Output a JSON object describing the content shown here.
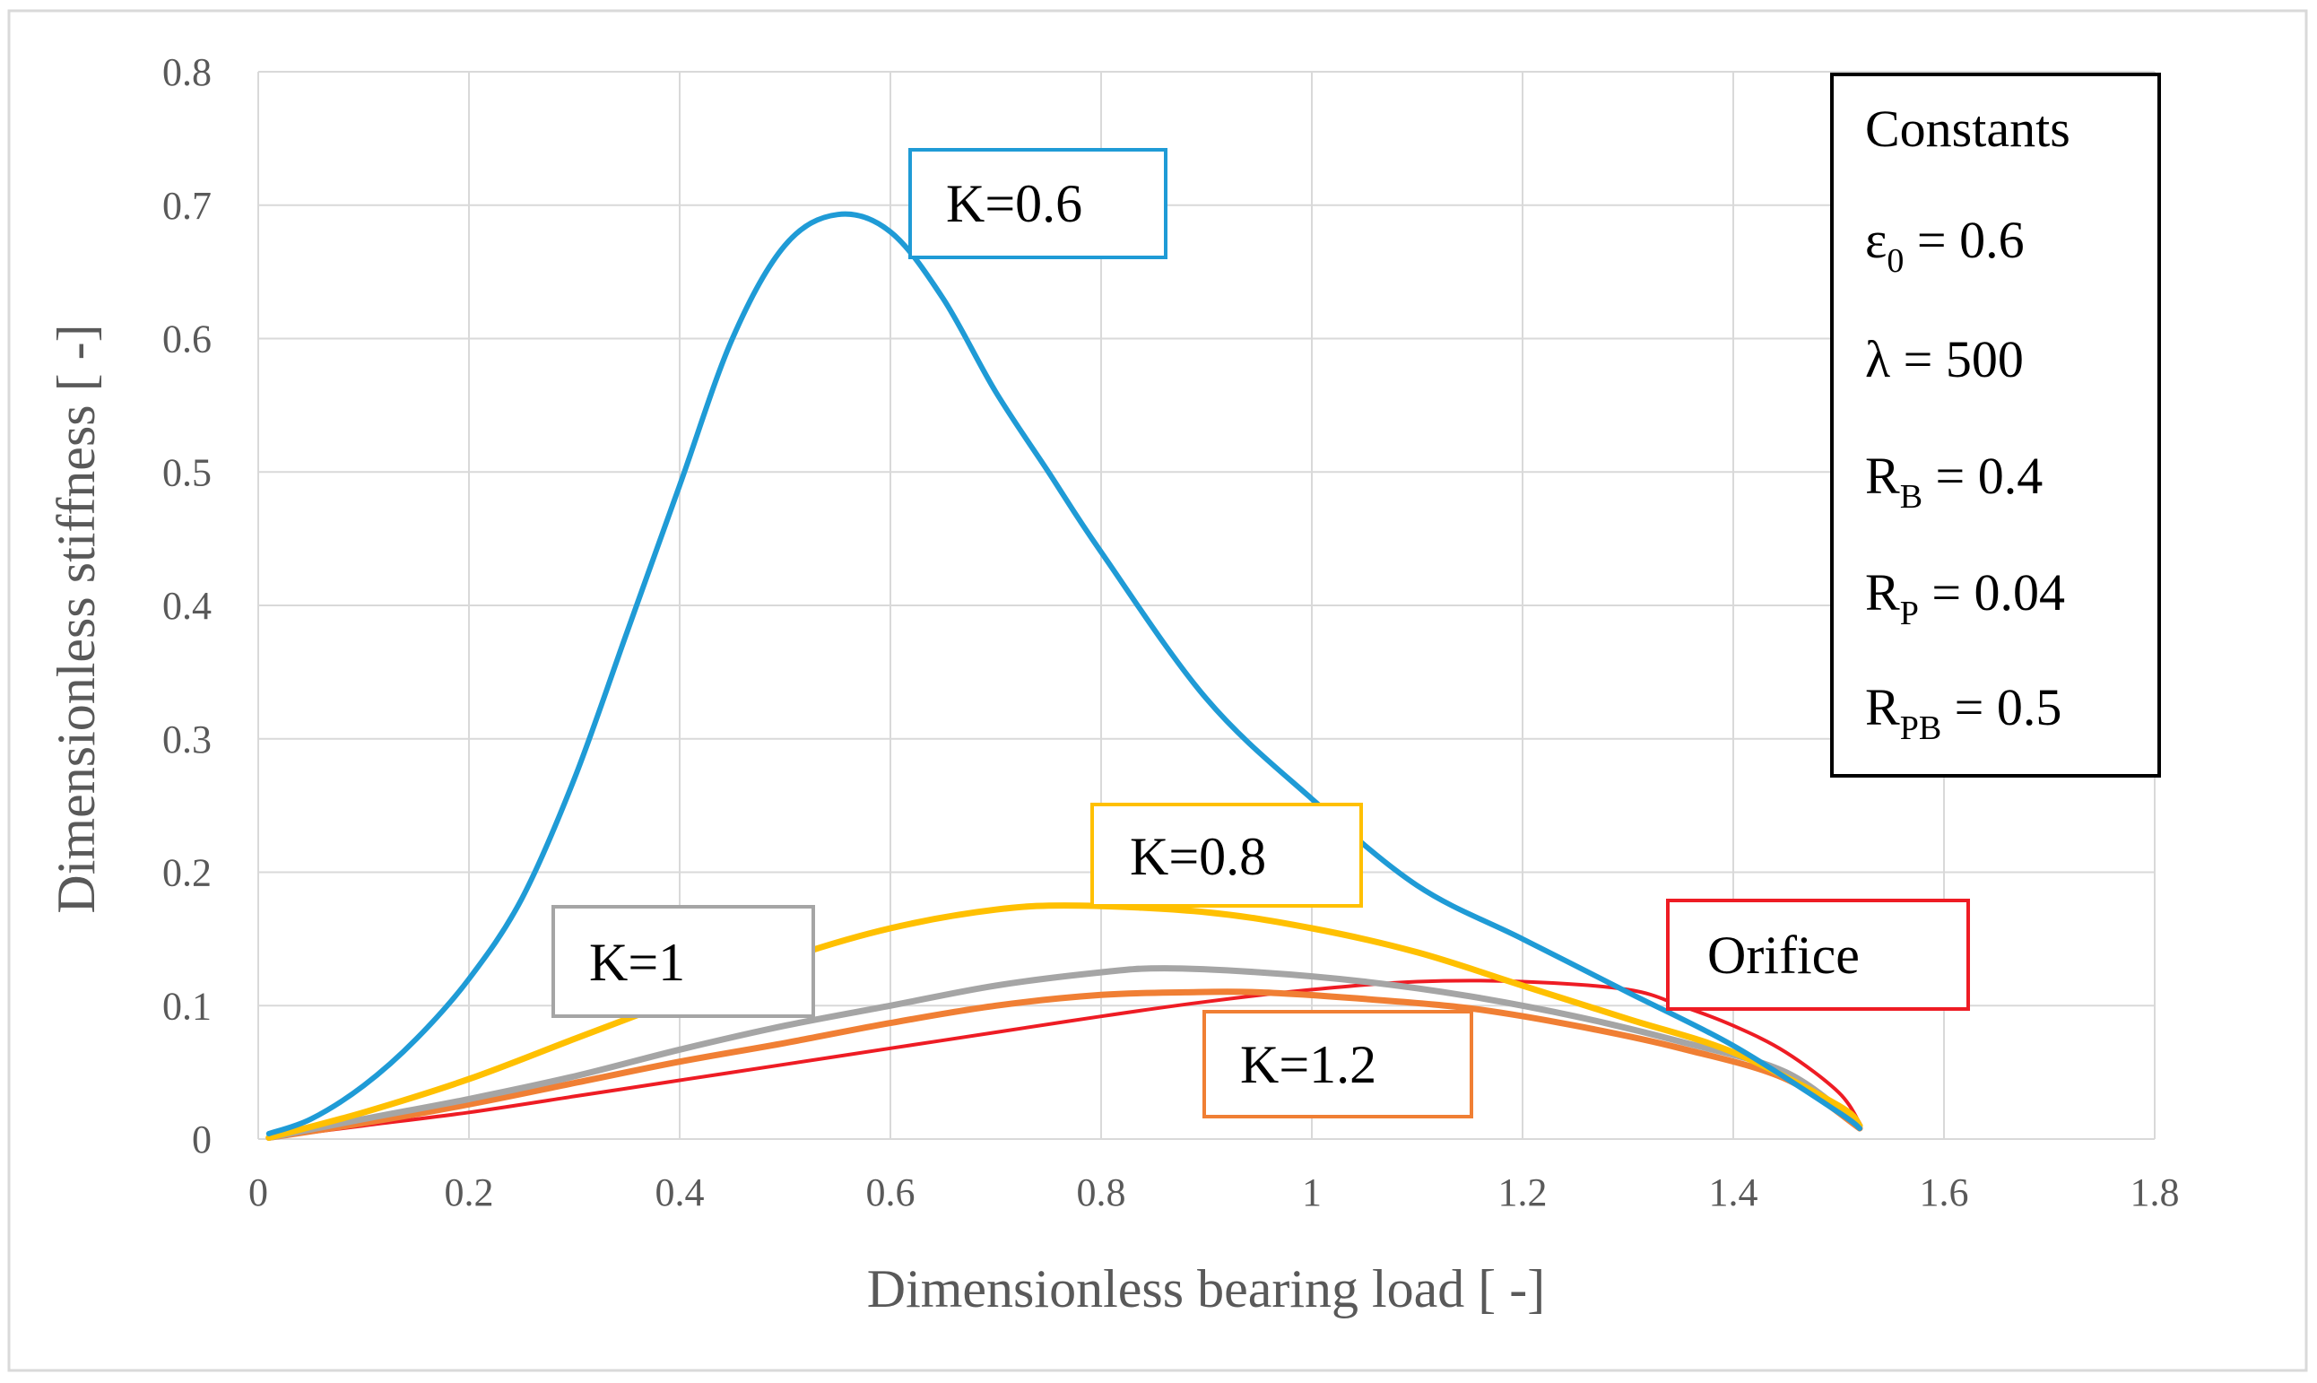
{
  "chart_data": {
    "type": "line",
    "title": "",
    "xlabel": "Dimensionless bearing load [    -]",
    "ylabel": "Dimensionless stiffness [    -]",
    "xlim": [
      0,
      1.8
    ],
    "ylim": [
      0,
      0.8
    ],
    "x_ticks": [
      "0",
      "0.2",
      "0.4",
      "0.6",
      "0.8",
      "1",
      "1.2",
      "1.4",
      "1.6",
      "1.8"
    ],
    "y_ticks": [
      "0",
      "0.1",
      "0.2",
      "0.3",
      "0.4",
      "0.5",
      "0.6",
      "0.7",
      "0.8"
    ],
    "grid": true,
    "series": [
      {
        "name": "K=0.6",
        "color": "#1f9bd6",
        "points": [
          [
            0.01,
            0.004
          ],
          [
            0.05,
            0.015
          ],
          [
            0.1,
            0.04
          ],
          [
            0.15,
            0.075
          ],
          [
            0.2,
            0.12
          ],
          [
            0.25,
            0.18
          ],
          [
            0.3,
            0.27
          ],
          [
            0.35,
            0.38
          ],
          [
            0.4,
            0.49
          ],
          [
            0.45,
            0.6
          ],
          [
            0.5,
            0.67
          ],
          [
            0.55,
            0.693
          ],
          [
            0.6,
            0.68
          ],
          [
            0.65,
            0.63
          ],
          [
            0.7,
            0.56
          ],
          [
            0.75,
            0.5
          ],
          [
            0.8,
            0.44
          ],
          [
            0.9,
            0.33
          ],
          [
            1.0,
            0.255
          ],
          [
            1.1,
            0.19
          ],
          [
            1.2,
            0.15
          ],
          [
            1.3,
            0.11
          ],
          [
            1.4,
            0.07
          ],
          [
            1.5,
            0.02
          ],
          [
            1.52,
            0.008
          ]
        ]
      },
      {
        "name": "K=0.8",
        "color": "#ffc000",
        "points": [
          [
            0.01,
            0.001
          ],
          [
            0.1,
            0.02
          ],
          [
            0.2,
            0.045
          ],
          [
            0.3,
            0.075
          ],
          [
            0.4,
            0.105
          ],
          [
            0.5,
            0.135
          ],
          [
            0.6,
            0.158
          ],
          [
            0.7,
            0.172
          ],
          [
            0.78,
            0.175
          ],
          [
            0.9,
            0.17
          ],
          [
            1.0,
            0.158
          ],
          [
            1.1,
            0.14
          ],
          [
            1.2,
            0.115
          ],
          [
            1.3,
            0.09
          ],
          [
            1.4,
            0.065
          ],
          [
            1.5,
            0.025
          ],
          [
            1.52,
            0.01
          ]
        ]
      },
      {
        "name": "K=1",
        "color": "#a5a5a5",
        "points": [
          [
            0.01,
            0.001
          ],
          [
            0.1,
            0.015
          ],
          [
            0.2,
            0.03
          ],
          [
            0.3,
            0.047
          ],
          [
            0.4,
            0.067
          ],
          [
            0.5,
            0.085
          ],
          [
            0.6,
            0.1
          ],
          [
            0.7,
            0.115
          ],
          [
            0.8,
            0.125
          ],
          [
            0.86,
            0.128
          ],
          [
            0.95,
            0.125
          ],
          [
            1.05,
            0.118
          ],
          [
            1.15,
            0.107
          ],
          [
            1.25,
            0.092
          ],
          [
            1.35,
            0.073
          ],
          [
            1.45,
            0.05
          ],
          [
            1.52,
            0.01
          ]
        ]
      },
      {
        "name": "K=1.2",
        "color": "#f07f34",
        "points": [
          [
            0.01,
            0.001
          ],
          [
            0.1,
            0.012
          ],
          [
            0.2,
            0.026
          ],
          [
            0.3,
            0.042
          ],
          [
            0.4,
            0.058
          ],
          [
            0.5,
            0.072
          ],
          [
            0.6,
            0.087
          ],
          [
            0.7,
            0.1
          ],
          [
            0.8,
            0.108
          ],
          [
            0.88,
            0.11
          ],
          [
            0.95,
            0.11
          ],
          [
            1.05,
            0.105
          ],
          [
            1.15,
            0.098
          ],
          [
            1.25,
            0.085
          ],
          [
            1.35,
            0.068
          ],
          [
            1.45,
            0.045
          ],
          [
            1.52,
            0.008
          ]
        ]
      },
      {
        "name": "Orifice",
        "color": "#ee1c24",
        "points": [
          [
            0.01,
            0.001
          ],
          [
            0.1,
            0.01
          ],
          [
            0.2,
            0.02
          ],
          [
            0.3,
            0.032
          ],
          [
            0.4,
            0.044
          ],
          [
            0.5,
            0.056
          ],
          [
            0.6,
            0.068
          ],
          [
            0.7,
            0.08
          ],
          [
            0.8,
            0.092
          ],
          [
            0.9,
            0.103
          ],
          [
            1.0,
            0.112
          ],
          [
            1.1,
            0.118
          ],
          [
            1.2,
            0.118
          ],
          [
            1.3,
            0.112
          ],
          [
            1.35,
            0.1
          ],
          [
            1.4,
            0.085
          ],
          [
            1.45,
            0.065
          ],
          [
            1.5,
            0.035
          ],
          [
            1.52,
            0.012
          ]
        ]
      }
    ],
    "annotations": [
      {
        "label": "K=0.6",
        "color": "#1f9bd6"
      },
      {
        "label": "K=0.8",
        "color": "#ffc000"
      },
      {
        "label": "K=1",
        "color": "#a5a5a5"
      },
      {
        "label": "K=1.2",
        "color": "#f07f34"
      },
      {
        "label": "Orifice",
        "color": "#ee1c24"
      }
    ],
    "constants_box": {
      "title": "Constants",
      "items": [
        {
          "sym": "ε",
          "sub": "0",
          "rest": " = 0.6"
        },
        {
          "sym": "λ",
          "sub": "",
          "rest": " = 500"
        },
        {
          "sym": "R",
          "sub": "B",
          "rest": " = 0.4"
        },
        {
          "sym": "R",
          "sub": "P",
          "rest": " = 0.04"
        },
        {
          "sym": "R",
          "sub": "PB",
          "rest": " = 0.5"
        }
      ]
    }
  }
}
